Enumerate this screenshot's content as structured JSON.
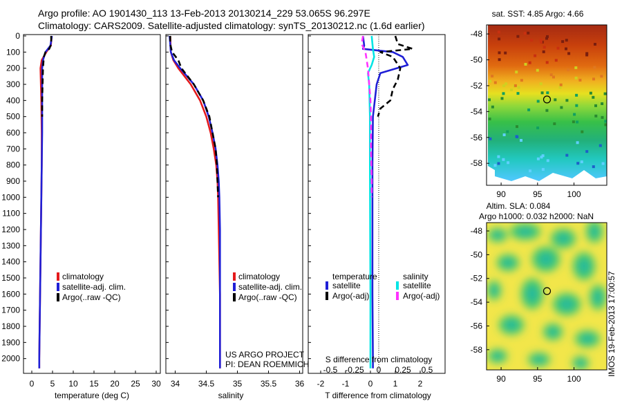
{
  "titles": {
    "line1": "Argo profile: AO 1901430_113 13-Feb-2013 20130214_229 53.065S 96.297E",
    "line2": "Climatology: CARS2009. Satellite-adjusted climatology: synTS_20130212.nc (1.6d earlier)"
  },
  "project": {
    "line1": "US ARGO PROJECT",
    "line2": "PI: DEAN ROEMMICH"
  },
  "stamp": "IMOS 19-Feb-2013 17:00:57",
  "map_sst": {
    "title": "sat. SST: 4.85 Argo: 4.66"
  },
  "map_sla": {
    "title1": "Altim. SLA: 0.084",
    "title2": "Argo h1000: 0.032 h2000: NaN"
  },
  "legend_temp": [
    "climatology",
    "satellite-adj. clim.",
    "Argo(..raw -QC)"
  ],
  "legend_sal": [
    "climatology",
    "satellite-adj. clim.",
    "Argo(..raw -QC)"
  ],
  "legend_diff": {
    "temp_head": "temperature",
    "sal_head": "salinity",
    "temp_items": [
      "satellite",
      "Argo(-adj)"
    ],
    "sal_items": [
      "satellite",
      "Argo(-adj)"
    ]
  },
  "colors": {
    "climatology": "#e41a1c",
    "satellite": "#1f1fd6",
    "argo": "#000000",
    "sal_sat": "#00e5e5",
    "sal_argo": "#ff33ff"
  },
  "chart_data": [
    {
      "type": "line",
      "id": "temperature",
      "xlabel": "temperature (deg C)",
      "ylabel": "",
      "xlim": [
        -2,
        31
      ],
      "xticks": [
        "0",
        "5",
        "10",
        "15",
        "20",
        "25",
        "30"
      ],
      "ylim": [
        0,
        2100
      ],
      "yticks": [
        "0",
        "100",
        "200",
        "300",
        "400",
        "500",
        "600",
        "700",
        "800",
        "900",
        "1000",
        "1100",
        "1200",
        "1300",
        "1400",
        "1500",
        "1600",
        "1700",
        "1800",
        "1900",
        "2000"
      ],
      "series": [
        {
          "name": "climatology",
          "color": "#e41a1c",
          "style": "solid",
          "depth": [
            0,
            60,
            100,
            150,
            200,
            300,
            400,
            600,
            800,
            1000,
            1200,
            1400,
            1600,
            1800,
            2000,
            2060
          ],
          "values": [
            4.8,
            4.6,
            3.5,
            2.4,
            2.1,
            2.2,
            2.3,
            2.4,
            2.4,
            2.3,
            2.2,
            2.1,
            2.0,
            1.9,
            1.8,
            1.8
          ]
        },
        {
          "name": "satellite-adj. clim.",
          "color": "#1f1fd6",
          "style": "solid",
          "depth": [
            0,
            60,
            100,
            150,
            200,
            300,
            400,
            600,
            800,
            1000,
            1200,
            1400,
            1600,
            1800,
            2000,
            2060
          ],
          "values": [
            4.85,
            4.5,
            3.3,
            2.7,
            2.5,
            2.5,
            2.5,
            2.5,
            2.4,
            2.3,
            2.2,
            2.1,
            2.0,
            1.9,
            1.8,
            1.8
          ]
        },
        {
          "name": "Argo(..raw -QC)",
          "color": "#000000",
          "style": "dashed",
          "depth": [
            0,
            50,
            80,
            100,
            130,
            200,
            300,
            400,
            500
          ],
          "values": [
            4.66,
            4.7,
            4.2,
            3.3,
            2.9,
            2.7,
            2.6,
            2.5,
            2.5
          ]
        }
      ]
    },
    {
      "type": "line",
      "id": "salinity",
      "xlabel": "salinity",
      "ylabel": "",
      "xlim": [
        33.85,
        36.05
      ],
      "xticks": [
        "34",
        "34.5",
        "35",
        "35.5",
        "36"
      ],
      "ylim": [
        0,
        2100
      ],
      "series": [
        {
          "name": "climatology",
          "color": "#e41a1c",
          "style": "solid",
          "depth": [
            0,
            100,
            150,
            200,
            300,
            400,
            500,
            600,
            700,
            800,
            900,
            1000,
            1200,
            1400,
            1600,
            1800,
            2000,
            2060
          ],
          "values": [
            33.92,
            33.93,
            33.97,
            34.05,
            34.25,
            34.4,
            34.5,
            34.57,
            34.62,
            34.66,
            34.68,
            34.69,
            34.7,
            34.71,
            34.72,
            34.72,
            34.72,
            34.72
          ]
        },
        {
          "name": "satellite-adj. clim.",
          "color": "#1f1fd6",
          "style": "solid",
          "depth": [
            0,
            100,
            150,
            200,
            300,
            400,
            500,
            600,
            700,
            800,
            900,
            1000,
            1200,
            1400,
            1600,
            1800,
            2000,
            2060
          ],
          "values": [
            33.91,
            33.93,
            33.98,
            34.08,
            34.3,
            34.45,
            34.54,
            34.6,
            34.65,
            34.68,
            34.7,
            34.71,
            34.72,
            34.72,
            34.72,
            34.72,
            34.72,
            34.72
          ]
        },
        {
          "name": "Argo(..raw -QC)",
          "color": "#000000",
          "style": "dashed",
          "depth": [
            0,
            50,
            100,
            150,
            200,
            300,
            400,
            500,
            600,
            700,
            800,
            900,
            1000
          ],
          "values": [
            33.92,
            33.92,
            33.95,
            34.05,
            34.1,
            34.3,
            34.45,
            34.55,
            34.6,
            34.65,
            34.67,
            34.68,
            34.69
          ]
        }
      ]
    },
    {
      "type": "line",
      "id": "difference",
      "xlabel": "T difference from climatology",
      "xlabel_top": "S difference from climatology",
      "xlim": [
        -2.5,
        3
      ],
      "xticks": [
        "-2",
        "-1",
        "0",
        "1",
        "2"
      ],
      "xticks_top": [
        "-0.5",
        "-0.25",
        "0",
        "0.25",
        "0.5"
      ],
      "ylim": [
        0,
        2100
      ],
      "series": [
        {
          "name": "temperature satellite",
          "color": "#1f1fd6",
          "style": "solid",
          "depth": [
            0,
            60,
            80,
            100,
            130,
            180,
            230,
            300,
            500,
            800,
            1200,
            1600,
            2000,
            2060
          ],
          "values": [
            -0.3,
            -0.25,
            -0.3,
            0.9,
            1.3,
            1.5,
            0.4,
            0.25,
            0.1,
            0.08,
            0.08,
            0.08,
            0.1,
            0.1
          ]
        },
        {
          "name": "temperature Argo(-adj)",
          "color": "#000000",
          "style": "dashed",
          "depth": [
            0,
            50,
            80,
            100,
            130,
            200,
            270,
            330,
            400,
            450,
            500
          ],
          "values": [
            1.0,
            1.1,
            1.7,
            0.4,
            0.9,
            1.2,
            1.1,
            0.9,
            0.8,
            0.4,
            0.3
          ]
        },
        {
          "name": "salinity satellite",
          "color": "#00e5e5",
          "style": "solid",
          "depth": [
            0,
            80,
            130,
            180,
            230,
            300,
            500,
            800,
            1200,
            1600,
            2000,
            2060
          ],
          "values": [
            0.05,
            0.1,
            0.15,
            0.05,
            -0.1,
            -0.05,
            -0.02,
            -0.02,
            -0.01,
            0,
            0,
            0
          ]
        },
        {
          "name": "salinity Argo(-adj)",
          "color": "#ff33ff",
          "style": "dashed",
          "depth": [
            0,
            50,
            100,
            150,
            200,
            300,
            400,
            500,
            700,
            900,
            1000
          ],
          "values": [
            -0.3,
            -0.35,
            -0.2,
            -0.15,
            -0.1,
            -0.05,
            0,
            0.02,
            0.02,
            0.05,
            0.05
          ]
        }
      ]
    },
    {
      "type": "heatmap",
      "id": "sst_map",
      "title": "sat. SST: 4.85 Argo: 4.66",
      "xticks": [
        "90",
        "95",
        "100"
      ],
      "yticks": [
        "-48",
        "-50",
        "-52",
        "-54",
        "-56",
        "-58"
      ],
      "xlim": [
        88,
        104.5
      ],
      "ylim": [
        -59.7,
        -47.3
      ],
      "marker": {
        "lon": 96.297,
        "lat": -53.065
      }
    },
    {
      "type": "heatmap",
      "id": "sla_map",
      "title": "Altim. SLA: 0.084",
      "subtitle": "Argo h1000: 0.032 h2000: NaN",
      "xticks": [
        "90",
        "95",
        "100"
      ],
      "yticks": [
        "-48",
        "-50",
        "-52",
        "-54",
        "-56",
        "-58"
      ],
      "xlim": [
        88,
        104.5
      ],
      "ylim": [
        -59.7,
        -47.3
      ],
      "marker": {
        "lon": 96.297,
        "lat": -53.065
      }
    }
  ]
}
